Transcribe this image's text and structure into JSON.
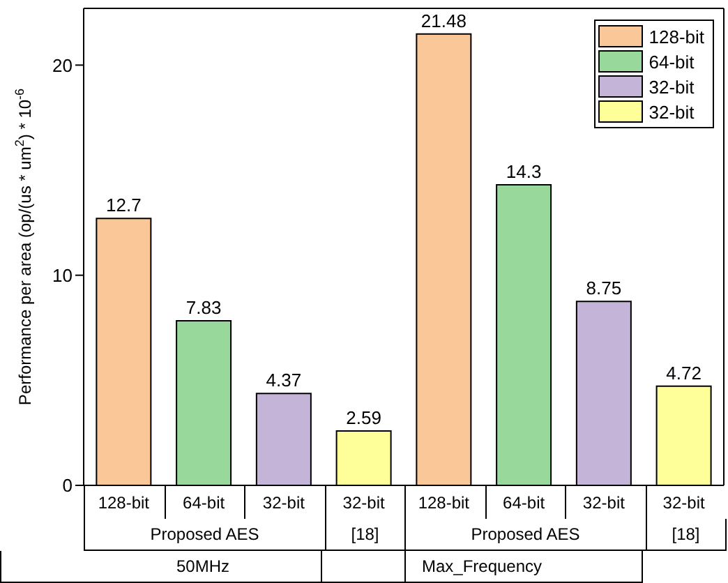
{
  "chart_data": {
    "type": "bar",
    "ylabel": "Performance per area (op/(us * um$^{2}$) * 10$^{-6}$",
    "categories": [
      "128-bit",
      "64-bit",
      "32-bit",
      "32-bit",
      "128-bit",
      "64-bit",
      "32-bit",
      "32-bit"
    ],
    "series": [
      {
        "name": "128-bit",
        "color": "#fac898",
        "values": [
          12.7,
          null,
          null,
          null,
          21.48,
          null,
          null,
          null
        ]
      },
      {
        "name": "64-bit",
        "color": "#98d89a",
        "values": [
          null,
          7.83,
          null,
          null,
          null,
          14.3,
          null,
          null
        ]
      },
      {
        "name": "32-bit",
        "color": "#c4b4d8",
        "values": [
          null,
          null,
          4.37,
          null,
          null,
          null,
          8.75,
          null
        ]
      },
      {
        "name": "32-bit",
        "color": "#ffff99",
        "values": [
          null,
          null,
          null,
          2.59,
          null,
          null,
          null,
          4.72
        ]
      }
    ],
    "stacked": true,
    "data_labels": true,
    "ylim": [
      0,
      22.7
    ],
    "yticks": [
      0,
      10,
      20
    ],
    "grid": false,
    "legend": "top right",
    "annotations": [
      "Proposed AES",
      "[18]",
      "Proposed AES",
      "[18]",
      "50MHz",
      "Max_Frequency"
    ]
  }
}
